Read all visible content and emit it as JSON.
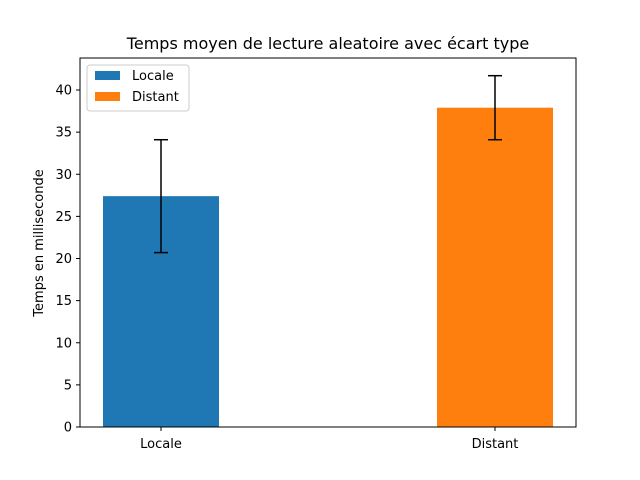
{
  "chart_data": {
    "type": "bar",
    "title": "Temps moyen de lecture aleatoire avec écart type",
    "xlabel": "",
    "ylabel": "Temps en milliseconde",
    "categories": [
      "Locale",
      "Distant"
    ],
    "values": [
      27.4,
      37.9
    ],
    "errors": [
      6.7,
      3.8
    ],
    "colors": [
      "#1f77b4",
      "#ff7f0e"
    ],
    "ylim": [
      0,
      43.8
    ],
    "yticks": [
      0,
      5,
      10,
      15,
      20,
      25,
      30,
      35,
      40
    ],
    "legend": {
      "placement": "top-left",
      "entries": [
        {
          "label": "Locale",
          "color": "#1f77b4"
        },
        {
          "label": "Distant",
          "color": "#ff7f0e"
        }
      ]
    },
    "grid": false
  }
}
